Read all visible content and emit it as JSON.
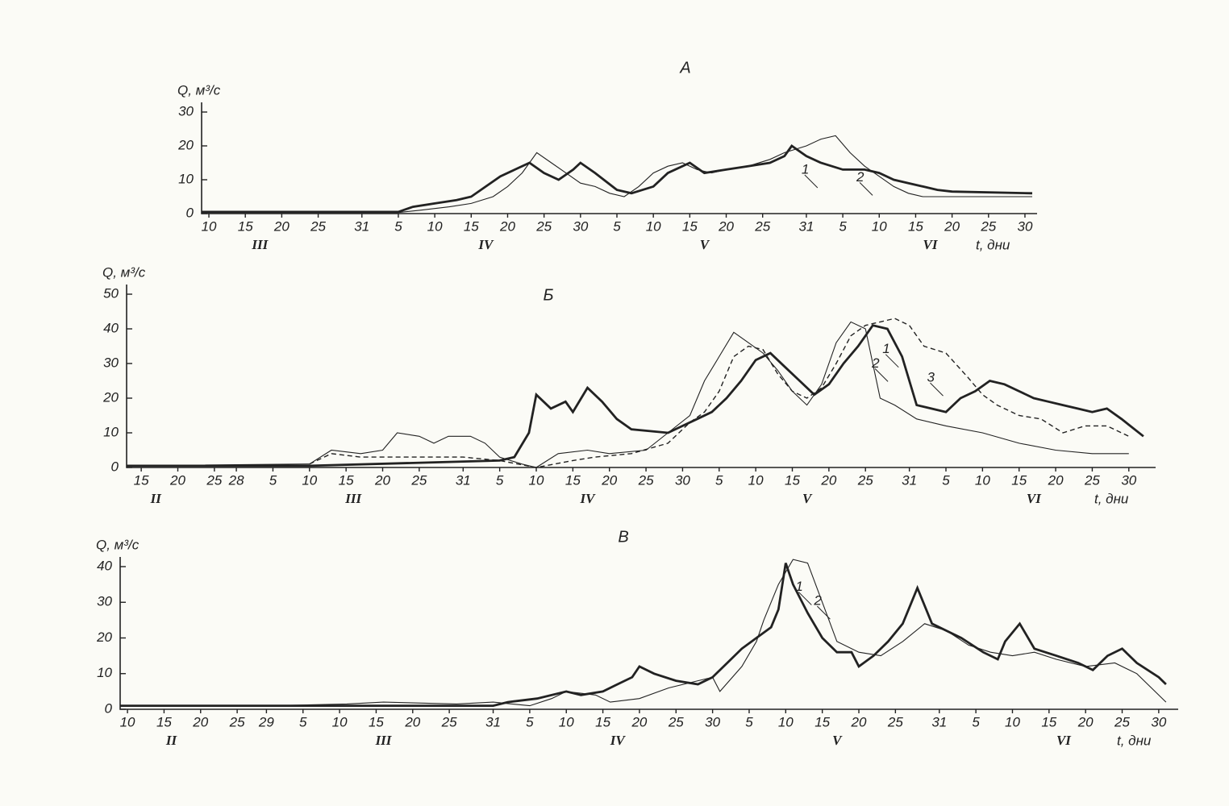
{
  "chart_data": [
    {
      "type": "line",
      "title": "А",
      "y_label": "Q, м³/с",
      "x_label": "t, дни",
      "xlim": [
        -1,
        113
      ],
      "ylim": [
        0,
        30
      ],
      "yticks": [
        0,
        10,
        20,
        30
      ],
      "xticks": [
        {
          "value": 0,
          "label": "10"
        },
        {
          "value": 5,
          "label": "15"
        },
        {
          "value": 10,
          "label": "20"
        },
        {
          "value": 15,
          "label": "25"
        },
        {
          "value": 21,
          "label": "31"
        },
        {
          "value": 26,
          "label": "5"
        },
        {
          "value": 31,
          "label": "10"
        },
        {
          "value": 36,
          "label": "15"
        },
        {
          "value": 41,
          "label": "20"
        },
        {
          "value": 46,
          "label": "25"
        },
        {
          "value": 51,
          "label": "30"
        },
        {
          "value": 56,
          "label": "5"
        },
        {
          "value": 61,
          "label": "10"
        },
        {
          "value": 66,
          "label": "15"
        },
        {
          "value": 71,
          "label": "20"
        },
        {
          "value": 76,
          "label": "25"
        },
        {
          "value": 82,
          "label": "31"
        },
        {
          "value": 87,
          "label": "5"
        },
        {
          "value": 92,
          "label": "10"
        },
        {
          "value": 97,
          "label": "15"
        },
        {
          "value": 102,
          "label": "20"
        },
        {
          "value": 107,
          "label": "25"
        },
        {
          "value": 112,
          "label": "30"
        }
      ],
      "x_groups": [
        {
          "value": 7,
          "label": "III"
        },
        {
          "value": 38,
          "label": "IV"
        },
        {
          "value": 68,
          "label": "V"
        },
        {
          "value": 99,
          "label": "VI"
        }
      ],
      "series": [
        {
          "name": "1",
          "color": "#222",
          "style": "thick",
          "x": [
            -1,
            26,
            28,
            31,
            34,
            36,
            38,
            40,
            42,
            44,
            46,
            48,
            50,
            51,
            53,
            56,
            58,
            61,
            63,
            66,
            68,
            71,
            74,
            77,
            79,
            80,
            82,
            84,
            87,
            90,
            92,
            94,
            96,
            98,
            100,
            102,
            113
          ],
          "values": [
            0.5,
            0.5,
            2,
            3,
            4,
            5,
            8,
            11,
            13,
            15,
            12,
            10,
            13,
            15,
            12,
            7,
            6,
            8,
            12,
            15,
            12,
            13,
            14,
            15,
            17,
            20,
            17,
            15,
            13,
            13,
            12,
            10,
            9,
            8,
            7,
            6.5,
            6
          ]
        },
        {
          "name": "2",
          "color": "#222",
          "style": "thin",
          "x": [
            -1,
            26,
            29,
            33,
            36,
            39,
            41,
            43,
            45,
            47,
            49,
            51,
            53,
            55,
            57,
            59,
            61,
            63,
            65,
            67,
            69,
            71,
            74,
            77,
            79,
            82,
            84,
            86,
            88,
            90,
            92,
            94,
            96,
            98,
            113
          ],
          "values": [
            0.3,
            0.3,
            1,
            2,
            3,
            5,
            8,
            12,
            18,
            15,
            12,
            9,
            8,
            6,
            5,
            8,
            12,
            14,
            15,
            13,
            12,
            13,
            14,
            16,
            18,
            20,
            22,
            23,
            18,
            14,
            11,
            8,
            6,
            5,
            5
          ]
        }
      ]
    },
    {
      "type": "line",
      "title": "Б",
      "y_label": "Q, м³/с",
      "x_label": "t, дни",
      "xlim": [
        -2,
        138
      ],
      "ylim": [
        0,
        50
      ],
      "yticks": [
        0,
        10,
        20,
        30,
        40,
        50
      ],
      "xticks": [
        {
          "value": 0,
          "label": "15"
        },
        {
          "value": 5,
          "label": "20"
        },
        {
          "value": 10,
          "label": "25"
        },
        {
          "value": 13,
          "label": "28"
        },
        {
          "value": 18,
          "label": "5"
        },
        {
          "value": 23,
          "label": "10"
        },
        {
          "value": 28,
          "label": "15"
        },
        {
          "value": 33,
          "label": "20"
        },
        {
          "value": 38,
          "label": "25"
        },
        {
          "value": 44,
          "label": "31"
        },
        {
          "value": 49,
          "label": "5"
        },
        {
          "value": 54,
          "label": "10"
        },
        {
          "value": 59,
          "label": "15"
        },
        {
          "value": 64,
          "label": "20"
        },
        {
          "value": 69,
          "label": "25"
        },
        {
          "value": 74,
          "label": "30"
        },
        {
          "value": 79,
          "label": "5"
        },
        {
          "value": 84,
          "label": "10"
        },
        {
          "value": 89,
          "label": "15"
        },
        {
          "value": 94,
          "label": "20"
        },
        {
          "value": 99,
          "label": "25"
        },
        {
          "value": 105,
          "label": "31"
        },
        {
          "value": 110,
          "label": "5"
        },
        {
          "value": 115,
          "label": "10"
        },
        {
          "value": 120,
          "label": "15"
        },
        {
          "value": 125,
          "label": "20"
        },
        {
          "value": 130,
          "label": "25"
        },
        {
          "value": 135,
          "label": "30"
        }
      ],
      "x_groups": [
        {
          "value": 2,
          "label": "II"
        },
        {
          "value": 29,
          "label": "III"
        },
        {
          "value": 61,
          "label": "IV"
        },
        {
          "value": 91,
          "label": "V"
        },
        {
          "value": 122,
          "label": "VI"
        }
      ],
      "series": [
        {
          "name": "1",
          "color": "#222",
          "style": "thick",
          "x": [
            -2,
            23,
            49,
            51,
            53,
            54,
            56,
            58,
            59,
            61,
            63,
            65,
            67,
            72,
            74,
            76,
            78,
            80,
            82,
            84,
            86,
            88,
            90,
            92,
            94,
            96,
            98,
            100,
            102,
            104,
            106,
            108,
            110,
            112,
            114,
            116,
            118,
            120,
            122,
            124,
            126,
            128,
            130,
            132,
            134,
            137
          ],
          "values": [
            0.5,
            0.5,
            2,
            3,
            10,
            21,
            17,
            19,
            16,
            23,
            19,
            14,
            11,
            10,
            12,
            14,
            16,
            20,
            25,
            31,
            33,
            29,
            25,
            21,
            24,
            30,
            35,
            41,
            40,
            32,
            18,
            17,
            16,
            20,
            22,
            25,
            24,
            22,
            20,
            19,
            18,
            17,
            16,
            17,
            14,
            9
          ]
        },
        {
          "name": "2",
          "color": "#222",
          "style": "thin",
          "x": [
            -2,
            23,
            26,
            30,
            33,
            35,
            38,
            40,
            42,
            45,
            47,
            49,
            52,
            54,
            57,
            61,
            64,
            69,
            72,
            75,
            77,
            79,
            81,
            83,
            85,
            87,
            89,
            91,
            93,
            95,
            97,
            99,
            101,
            103,
            106,
            110,
            115,
            120,
            125,
            130,
            135
          ],
          "values": [
            0.5,
            1,
            5,
            4,
            5,
            10,
            9,
            7,
            9,
            9,
            7,
            3,
            1,
            0,
            4,
            5,
            4,
            5,
            10,
            15,
            25,
            32,
            39,
            36,
            33,
            28,
            22,
            18,
            24,
            36,
            42,
            40,
            20,
            18,
            14,
            12,
            10,
            7,
            5,
            4,
            4
          ]
        },
        {
          "name": "3",
          "color": "#222",
          "style": "dashed",
          "x": [
            23,
            26,
            30,
            33,
            38,
            44,
            49,
            54,
            59,
            62,
            67,
            72,
            75,
            77,
            79,
            81,
            83,
            85,
            87,
            89,
            91,
            93,
            95,
            97,
            99,
            101,
            103,
            105,
            107,
            110,
            113,
            115,
            117,
            120,
            123,
            126,
            129,
            132,
            135
          ],
          "values": [
            1,
            4,
            3,
            3,
            3,
            3,
            2,
            0,
            2,
            3,
            4,
            7,
            13,
            16,
            22,
            32,
            35,
            34,
            27,
            22,
            20,
            23,
            30,
            38,
            41,
            42,
            43,
            41,
            35,
            33,
            26,
            21,
            18,
            15,
            14,
            10,
            12,
            12,
            9
          ]
        }
      ]
    },
    {
      "type": "line",
      "title": "В",
      "y_label": "Q, м³/с",
      "x_label": "t, дни",
      "xlim": [
        -1,
        143
      ],
      "ylim": [
        0,
        40
      ],
      "yticks": [
        0,
        10,
        20,
        30,
        40
      ],
      "xticks": [
        {
          "value": 0,
          "label": "10"
        },
        {
          "value": 5,
          "label": "15"
        },
        {
          "value": 10,
          "label": "20"
        },
        {
          "value": 15,
          "label": "25"
        },
        {
          "value": 19,
          "label": "29"
        },
        {
          "value": 24,
          "label": "5"
        },
        {
          "value": 29,
          "label": "10"
        },
        {
          "value": 34,
          "label": "15"
        },
        {
          "value": 39,
          "label": "20"
        },
        {
          "value": 44,
          "label": "25"
        },
        {
          "value": 50,
          "label": "31"
        },
        {
          "value": 55,
          "label": "5"
        },
        {
          "value": 60,
          "label": "10"
        },
        {
          "value": 65,
          "label": "15"
        },
        {
          "value": 70,
          "label": "20"
        },
        {
          "value": 75,
          "label": "25"
        },
        {
          "value": 80,
          "label": "30"
        },
        {
          "value": 85,
          "label": "5"
        },
        {
          "value": 90,
          "label": "10"
        },
        {
          "value": 95,
          "label": "15"
        },
        {
          "value": 100,
          "label": "20"
        },
        {
          "value": 105,
          "label": "25"
        },
        {
          "value": 111,
          "label": "31"
        },
        {
          "value": 116,
          "label": "5"
        },
        {
          "value": 121,
          "label": "10"
        },
        {
          "value": 126,
          "label": "15"
        },
        {
          "value": 131,
          "label": "20"
        },
        {
          "value": 136,
          "label": "25"
        },
        {
          "value": 141,
          "label": "30"
        }
      ],
      "x_groups": [
        {
          "value": 6,
          "label": "II"
        },
        {
          "value": 35,
          "label": "III"
        },
        {
          "value": 67,
          "label": "IV"
        },
        {
          "value": 97,
          "label": "V"
        },
        {
          "value": 128,
          "label": "VI"
        }
      ],
      "series": [
        {
          "name": "1",
          "color": "#222",
          "style": "thick",
          "x": [
            -1,
            50,
            52,
            56,
            60,
            62,
            65,
            67,
            69,
            70,
            72,
            75,
            78,
            80,
            82,
            84,
            86,
            88,
            89,
            90,
            91,
            93,
            95,
            97,
            99,
            100,
            102,
            104,
            106,
            107,
            108,
            110,
            112,
            114,
            117,
            119,
            120,
            122,
            124,
            127,
            130,
            132,
            134,
            136,
            138,
            141,
            142
          ],
          "values": [
            1,
            1,
            2,
            3,
            5,
            4,
            5,
            7,
            9,
            12,
            10,
            8,
            7,
            9,
            13,
            17,
            20,
            23,
            28,
            41,
            35,
            27,
            20,
            16,
            16,
            12,
            15,
            19,
            24,
            29,
            34,
            24,
            22,
            20,
            16,
            14,
            19,
            24,
            17,
            15,
            13,
            11,
            15,
            17,
            13,
            9,
            7
          ]
        },
        {
          "name": "2",
          "color": "#222",
          "style": "thin",
          "x": [
            -1,
            20,
            30,
            35,
            45,
            50,
            55,
            58,
            60,
            64,
            66,
            70,
            74,
            78,
            80,
            81,
            84,
            86,
            87,
            89,
            91,
            93,
            95,
            97,
            100,
            103,
            106,
            109,
            112,
            115,
            118,
            121,
            124,
            127,
            131,
            135,
            138,
            140,
            142
          ],
          "values": [
            1,
            1,
            1.5,
            2,
            1.5,
            2,
            1,
            3,
            5,
            4,
            2,
            3,
            6,
            8,
            9,
            5,
            12,
            19,
            25,
            35,
            42,
            41,
            30,
            19,
            16,
            15,
            19,
            24,
            22,
            18,
            16,
            15,
            16,
            14,
            12,
            13,
            10,
            6,
            2
          ]
        }
      ]
    }
  ]
}
